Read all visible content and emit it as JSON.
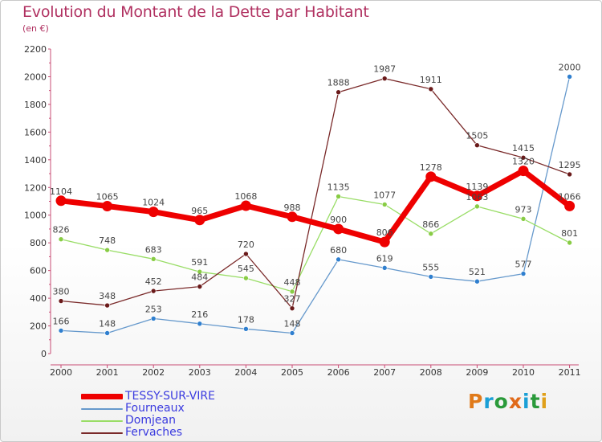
{
  "header": {
    "title": "Evolution du Montant de la Dette par Habitant",
    "subtitle": "(en €)"
  },
  "logo": {
    "text": "Proxiti",
    "colors": [
      "#e07a1a",
      "#1a9fd6",
      "#2a9a3a",
      "#e06a1a",
      "#1a9fd6",
      "#2a9a3a",
      "#e0a01a"
    ]
  },
  "chart_data": {
    "type": "line",
    "categories": [
      "2000",
      "2001",
      "2002",
      "2003",
      "2004",
      "2005",
      "2006",
      "2007",
      "2008",
      "2009",
      "2010",
      "2011"
    ],
    "ylim": [
      0,
      2200
    ],
    "yticks": [
      0,
      200,
      400,
      600,
      800,
      1000,
      1200,
      1400,
      1600,
      1800,
      2000,
      2200
    ],
    "grid": false,
    "legend_position": "bottom-left",
    "series": [
      {
        "name": "Fourneaux",
        "color": "#6699cc",
        "marker_color": "#2f7fcf",
        "values": [
          166,
          148,
          253,
          216,
          178,
          148,
          680,
          619,
          555,
          521,
          577,
          2000
        ]
      },
      {
        "name": "Domjean",
        "color": "#99dd66",
        "marker_color": "#88cc44",
        "values": [
          826,
          748,
          683,
          591,
          545,
          448,
          1135,
          1077,
          866,
          1063,
          973,
          801
        ]
      },
      {
        "name": "Fervaches",
        "color": "#7a2a2a",
        "marker_color": "#6a1a1a",
        "values": [
          380,
          348,
          452,
          484,
          720,
          327,
          1888,
          1987,
          1911,
          1505,
          1415,
          1295
        ]
      },
      {
        "name": "TESSY-SUR-VIRE",
        "color": "#ee0000",
        "marker_color": "#ee0000",
        "values": [
          1104,
          1065,
          1024,
          965,
          1068,
          988,
          900,
          806,
          1278,
          1139,
          1320,
          1066
        ]
      }
    ],
    "legend_order": [
      "TESSY-SUR-VIRE",
      "Fourneaux",
      "Domjean",
      "Fervaches"
    ]
  }
}
